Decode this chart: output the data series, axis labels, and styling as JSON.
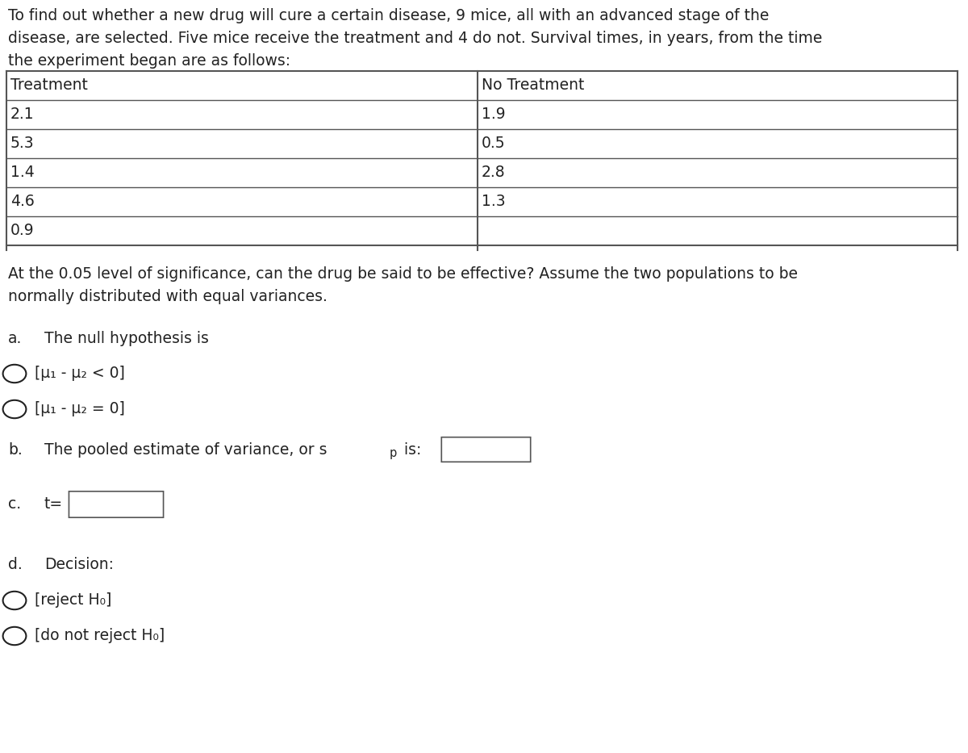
{
  "intro_lines": [
    "To find out whether a new drug will cure a certain disease, 9 mice, all with an advanced stage of the",
    "disease, are selected. Five mice receive the treatment and 4 do not. Survival times, in years, from the time",
    "the experiment began are as follows:"
  ],
  "table_headers": [
    "Treatment",
    "No Treatment"
  ],
  "treatment_data": [
    "2.1",
    "5.3",
    "1.4",
    "4.6",
    "0.9"
  ],
  "no_treatment_data": [
    "1.9",
    "0.5",
    "2.8",
    "1.3",
    ""
  ],
  "significance_lines": [
    "At the 0.05 level of significance, can the drug be said to be effective? Assume the two populations to be",
    "normally distributed with equal variances."
  ],
  "part_a_label": "a.",
  "part_a_text": "The null hypothesis is",
  "option1_circle": "○",
  "option1_text": "[μ₁ - μ₂ < 0]",
  "option2_text": "[μ₁ - μ₂ = 0]",
  "part_b_label": "b.",
  "part_b_text_before": "The pooled estimate of variance, or s",
  "part_b_sub": "p",
  "part_b_text_after": " is:",
  "part_c_label": "c.",
  "part_c_text": "t=",
  "part_d_label": "d.",
  "part_d_text": "Decision:",
  "option3_text": "[reject H₀]",
  "option4_text": "[do not reject H₀]",
  "bg_color": "#ffffff",
  "text_color": "#222222",
  "line_color": "#555555",
  "font_size": 14,
  "label_indent": 0.038,
  "text_indent": 0.075
}
